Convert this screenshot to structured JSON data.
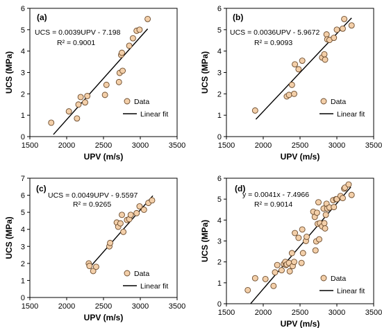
{
  "colors": {
    "marker_fill": "#f3cfa9",
    "marker_stroke": "#6b4a2b",
    "line": "#000000"
  },
  "chart_data": [
    {
      "panel": "(a)",
      "type": "scatter",
      "xlabel": "UPV (m/s)",
      "ylabel": "UCS (MPa)",
      "xlim": [
        1500,
        3500
      ],
      "ylim": [
        0,
        6
      ],
      "xticks": [
        1500,
        2000,
        2500,
        3000,
        3500
      ],
      "yticks": [
        0,
        1,
        2,
        3,
        4,
        5,
        6
      ],
      "equation": "UCS = 0.0039UPV - 7.198",
      "r2": "R² = 0.9001",
      "legend": {
        "data": "Data",
        "fit": "Linear fit"
      },
      "fit": {
        "x": [
          1820,
          3100
        ],
        "y": [
          0.1,
          5.04
        ]
      },
      "x": [
        1790,
        2030,
        2140,
        2160,
        2190,
        2250,
        2280,
        2520,
        2540,
        2710,
        2720,
        2740,
        2750,
        2760,
        2850,
        2900,
        2950,
        2990,
        3100
      ],
      "y": [
        0.65,
        1.18,
        0.85,
        1.5,
        1.85,
        1.6,
        1.9,
        1.95,
        2.42,
        2.55,
        2.98,
        3.82,
        3.92,
        3.08,
        4.25,
        4.6,
        4.95,
        5.0,
        5.5
      ]
    },
    {
      "panel": "(b)",
      "type": "scatter",
      "xlabel": "UPV (m/s)",
      "ylabel": "UCS (MPa)",
      "xlim": [
        1500,
        3500
      ],
      "ylim": [
        0,
        6
      ],
      "xticks": [
        1500,
        2000,
        2500,
        3000,
        3500
      ],
      "yticks": [
        0,
        1,
        2,
        3,
        4,
        5,
        6
      ],
      "equation": "UCS = 0.0036UPV - 5.9672",
      "r2": "R² = 0.9093",
      "legend": {
        "data": "Data",
        "fit": "Linear fit"
      },
      "fit": {
        "x": [
          1900,
          3200
        ],
        "y": [
          0.81,
          5.55
        ]
      },
      "x": [
        1890,
        2320,
        2350,
        2390,
        2420,
        2430,
        2480,
        2530,
        2800,
        2830,
        2840,
        2860,
        2870,
        2900,
        2960,
        3000,
        3080,
        3100,
        3200
      ],
      "y": [
        1.22,
        1.88,
        1.95,
        2.42,
        2.0,
        3.38,
        3.15,
        3.55,
        3.7,
        3.85,
        3.6,
        4.78,
        4.55,
        4.52,
        4.62,
        5.0,
        5.05,
        5.5,
        5.2
      ]
    },
    {
      "panel": "(c)",
      "type": "scatter",
      "xlabel": "UPV (m/s)",
      "ylabel": "UCS (MPa)",
      "xlim": [
        1500,
        3500
      ],
      "ylim": [
        0,
        7
      ],
      "xticks": [
        1500,
        2000,
        2500,
        3000,
        3500
      ],
      "yticks": [
        0,
        1,
        2,
        3,
        4,
        5,
        6,
        7
      ],
      "equation": "UCS = 0.0049UPV - 9.5597",
      "r2": "R² = 0.9265",
      "legend": {
        "data": "Data",
        "fit": "Linear fit"
      },
      "fit": {
        "x": [
          2300,
          3170
        ],
        "y": [
          1.7,
          5.97
        ]
      },
      "x": [
        2300,
        2310,
        2360,
        2400,
        2580,
        2590,
        2680,
        2700,
        2730,
        2750,
        2770,
        2820,
        2850,
        2870,
        2950,
        2990,
        3050,
        3110,
        3160
      ],
      "y": [
        2.0,
        1.85,
        1.55,
        1.8,
        3.0,
        3.2,
        4.4,
        4.15,
        4.35,
        4.85,
        3.85,
        4.55,
        4.6,
        4.85,
        4.95,
        5.35,
        5.15,
        5.55,
        5.7
      ]
    },
    {
      "panel": "(d)",
      "type": "scatter",
      "xlabel": "UPV (m/s)",
      "ylabel": "UCS (MPa)",
      "xlim": [
        1500,
        3500
      ],
      "ylim": [
        0,
        6
      ],
      "xticks": [
        1500,
        2000,
        2500,
        3000,
        3500
      ],
      "yticks": [
        0,
        1,
        2,
        3,
        4,
        5,
        6
      ],
      "equation": "y = 0.0041x - 7.4966",
      "r2": "R² = 0.9014",
      "legend": {
        "data": "Data",
        "fit": "Linear fit"
      },
      "fit": {
        "x": [
          1830,
          3190
        ],
        "y": [
          0.01,
          5.58
        ]
      },
      "x": [
        1790,
        1890,
        2030,
        2140,
        2160,
        2190,
        2250,
        2280,
        2300,
        2310,
        2320,
        2350,
        2360,
        2390,
        2400,
        2420,
        2430,
        2480,
        2520,
        2530,
        2540,
        2580,
        2590,
        2680,
        2700,
        2710,
        2720,
        2730,
        2740,
        2750,
        2760,
        2770,
        2800,
        2820,
        2830,
        2840,
        2850,
        2860,
        2870,
        2900,
        2950,
        2960,
        2990,
        3000,
        3050,
        3080,
        3100,
        3110,
        3160,
        3200
      ],
      "y": [
        0.65,
        1.22,
        1.18,
        0.85,
        1.5,
        1.85,
        1.6,
        1.9,
        2.0,
        1.85,
        1.88,
        1.95,
        1.55,
        2.42,
        1.8,
        2.0,
        3.38,
        3.15,
        1.95,
        3.55,
        2.42,
        3.0,
        3.2,
        4.4,
        4.15,
        2.55,
        2.98,
        4.35,
        3.82,
        4.85,
        3.08,
        3.85,
        3.7,
        4.55,
        3.85,
        3.6,
        4.25,
        4.78,
        4.55,
        4.6,
        4.95,
        4.62,
        5.0,
        5.0,
        5.15,
        5.05,
        5.5,
        5.55,
        5.7,
        5.2
      ]
    }
  ]
}
